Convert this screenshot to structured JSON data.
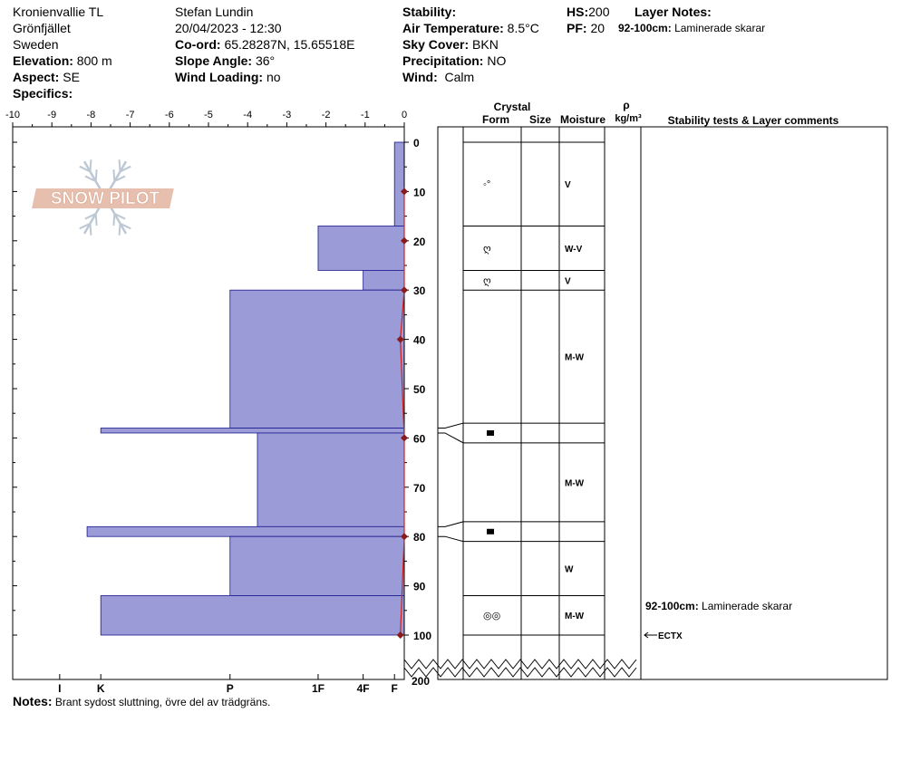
{
  "header": {
    "location": "Kronienvallie TL",
    "area": "Grönfjället",
    "country": "Sweden",
    "elevation_label": "Elevation:",
    "elevation": "800 m",
    "aspect_label": "Aspect:",
    "aspect": "SE",
    "specifics_label": "Specifics:",
    "observer": "Stefan Lundin",
    "datetime": "20/04/2023 - 12:30",
    "coord_label": "Co-ord:",
    "coord": "65.28287N, 15.65518E",
    "slope_label": "Slope Angle:",
    "slope": "36°",
    "wind_loading_label": "Wind Loading:",
    "wind_loading": "no",
    "stability_label": "Stability:",
    "stability": "",
    "air_temp_label": "Air Temperature:",
    "air_temp": "8.5°C",
    "sky_label": "Sky Cover:",
    "sky": "BKN",
    "precip_label": "Precipitation:",
    "precip": "NO",
    "wind_label": "Wind:",
    "wind": "Calm",
    "hs_label": "HS:",
    "hs": "200",
    "pf_label": "PF:",
    "pf": "20",
    "layer_notes_label": "Layer Notes:",
    "layer_note_range": "92-100cm:",
    "layer_note_text": "Laminerade skarar"
  },
  "notes": {
    "label": "Notes:",
    "text": "Brant sydost sluttning, övre del av trädgräns."
  },
  "logo": {
    "text": "SNOW PILOT"
  },
  "table_headers": {
    "crystal": "Crystal",
    "form": "Form",
    "size": "Size",
    "moisture": "Moisture",
    "rho": "ρ",
    "density_unit": "kg/m³",
    "comments": "Stability tests & Layer comments"
  },
  "chart_data": {
    "type": "bar",
    "x_ticks": [
      -10,
      -9,
      -8,
      -7,
      -6,
      -5,
      -4,
      -3,
      -2,
      -1,
      0
    ],
    "x_tick_labels": [
      "-10",
      "-9",
      "-8",
      "-7",
      "-6",
      "-5",
      "-4",
      "-3",
      "-2",
      "-1",
      "0"
    ],
    "y_ticks": [
      0,
      10,
      20,
      30,
      40,
      50,
      60,
      70,
      80,
      90,
      100
    ],
    "y_tick_labels": [
      "0",
      "10",
      "20",
      "30",
      "40",
      "50",
      "60",
      "70",
      "80",
      "90",
      "100"
    ],
    "y_break_label": "200",
    "hardness_labels": [
      "I",
      "K",
      "P",
      "1F",
      "4F",
      "F"
    ],
    "hardness_positions": [
      -8.8,
      -7.75,
      -4.45,
      -2.2,
      -1.05,
      -0.25
    ],
    "hardness_profile": [
      {
        "top": 0,
        "bottom": 17,
        "value": -0.25
      },
      {
        "top": 17,
        "bottom": 26,
        "value": -2.2
      },
      {
        "top": 26,
        "bottom": 30,
        "value": -1.05
      },
      {
        "top": 30,
        "bottom": 58,
        "value": -4.45
      },
      {
        "top": 58,
        "bottom": 59,
        "value": -7.75
      },
      {
        "top": 59,
        "bottom": 78,
        "value": -3.75
      },
      {
        "top": 78,
        "bottom": 80,
        "value": -8.1
      },
      {
        "top": 80,
        "bottom": 92,
        "value": -4.45
      },
      {
        "top": 92,
        "bottom": 100,
        "value": -7.75
      }
    ],
    "temperature_profile": [
      {
        "depth": 10,
        "temp": 0
      },
      {
        "depth": 20,
        "temp": 0
      },
      {
        "depth": 30,
        "temp": 0
      },
      {
        "depth": 40,
        "temp": -0.1
      },
      {
        "depth": 60,
        "temp": 0
      },
      {
        "depth": 80,
        "temp": 0
      },
      {
        "depth": 100,
        "temp": -0.1
      }
    ],
    "layers": [
      {
        "top": 0,
        "bottom": 17,
        "form": "◦°",
        "moisture": "V"
      },
      {
        "top": 17,
        "bottom": 26,
        "form": "ღ",
        "moisture": "W-V"
      },
      {
        "top": 26,
        "bottom": 30,
        "form": "ღ",
        "moisture": "V"
      },
      {
        "top": 30,
        "bottom": 57,
        "form": "",
        "moisture": "M-W"
      },
      {
        "top": 57,
        "bottom": 61,
        "form": "▬",
        "moisture": ""
      },
      {
        "top": 61,
        "bottom": 77,
        "form": "",
        "moisture": "M-W"
      },
      {
        "top": 77,
        "bottom": 81,
        "form": "▬",
        "moisture": ""
      },
      {
        "top": 81,
        "bottom": 92,
        "form": "",
        "moisture": "W"
      },
      {
        "top": 92,
        "bottom": 100,
        "form": "◎◎",
        "moisture": "M-W"
      }
    ],
    "layer_comments": [
      {
        "depth": 96,
        "range": "92-100cm:",
        "text": "Laminerade skarar"
      }
    ],
    "stability_tests": [
      {
        "depth": 100,
        "label": "ECTX"
      }
    ]
  }
}
